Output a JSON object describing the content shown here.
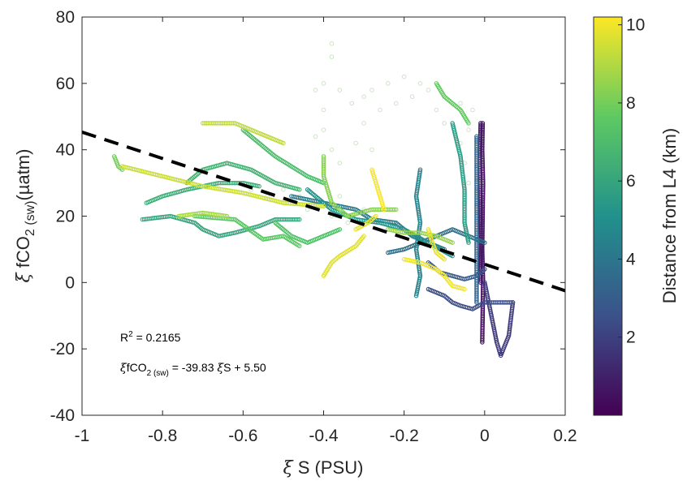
{
  "chart_data": {
    "type": "scatter",
    "title": "",
    "xlabel": {
      "symbol": "ξ",
      "text": " S (PSU)"
    },
    "ylabel": {
      "symbol": "ξ",
      "pre": " fCO",
      "sub1": "2",
      "sub2": " (sw)",
      "post": "(µatm)"
    },
    "colorbar_label": "Distance from L4 (km)",
    "xlim": [
      -1,
      0.2
    ],
    "ylim": [
      -40,
      80
    ],
    "xticks": [
      "-1",
      "-0.8",
      "-0.6",
      "-0.4",
      "-0.2",
      "0",
      "0.2"
    ],
    "yticks": [
      "80",
      "60",
      "40",
      "20",
      "0",
      "-20",
      "-40"
    ],
    "colorbar_range": [
      0,
      10.2
    ],
    "colorbar_ticks": [
      "10",
      "8",
      "6",
      "4",
      "2"
    ],
    "colormap": [
      "#440154",
      "#3b528b",
      "#21918c",
      "#5ec962",
      "#fde725"
    ],
    "regression": {
      "slope": -39.83,
      "intercept": 5.5,
      "style": "dashed",
      "color": "#000000"
    },
    "annotations": {
      "r2_text": "R",
      "r2_sup": "2",
      "r2_value": " = 0.2165",
      "eq_symbol": "ξ",
      "eq_pre": "fCO",
      "eq_sub1": "2",
      "eq_sub2": " (sw)",
      "eq_post": " = -39.83 ",
      "eq_symbol2": "ξ",
      "eq_tail": "S + 5.50"
    },
    "tracks": [
      {
        "d": 0.4,
        "points": [
          [
            -0.005,
            48
          ],
          [
            -0.006,
            40
          ],
          [
            -0.004,
            30
          ],
          [
            -0.005,
            20
          ],
          [
            -0.006,
            10
          ],
          [
            -0.004,
            0
          ],
          [
            -0.005,
            -10
          ],
          [
            -0.006,
            -18
          ]
        ]
      },
      {
        "d": 0.8,
        "points": [
          [
            -0.01,
            48
          ],
          [
            -0.012,
            36
          ],
          [
            -0.01,
            24
          ],
          [
            -0.009,
            12
          ],
          [
            -0.01,
            0
          ]
        ]
      },
      {
        "d": 1.8,
        "points": [
          [
            0.0,
            0
          ],
          [
            0.01,
            -6
          ],
          [
            0.02,
            -12
          ],
          [
            0.03,
            -18
          ],
          [
            0.04,
            -22
          ],
          [
            0.06,
            -16
          ],
          [
            0.07,
            -6
          ]
        ]
      },
      {
        "d": 2.4,
        "points": [
          [
            -0.14,
            -2
          ],
          [
            -0.1,
            -4
          ],
          [
            -0.08,
            -6
          ],
          [
            -0.06,
            -7
          ],
          [
            -0.03,
            -8
          ],
          [
            0.0,
            -6
          ],
          [
            0.04,
            -6
          ],
          [
            0.07,
            -6
          ]
        ]
      },
      {
        "d": 2.8,
        "points": [
          [
            -0.14,
            6
          ],
          [
            -0.11,
            3
          ],
          [
            -0.08,
            2
          ],
          [
            -0.05,
            1
          ],
          [
            -0.02,
            2
          ],
          [
            0.0,
            4
          ]
        ]
      },
      {
        "d": 3.2,
        "points": [
          [
            -0.02,
            44
          ],
          [
            -0.02,
            32
          ],
          [
            -0.02,
            20
          ],
          [
            -0.02,
            10
          ],
          [
            -0.02,
            2
          ],
          [
            -0.02,
            -6
          ]
        ]
      },
      {
        "d": 3.8,
        "points": [
          [
            -0.24,
            9
          ],
          [
            -0.2,
            10
          ],
          [
            -0.16,
            12
          ],
          [
            -0.12,
            14
          ],
          [
            -0.08,
            16
          ],
          [
            -0.04,
            14
          ],
          [
            0.0,
            12
          ]
        ]
      },
      {
        "d": 4.2,
        "points": [
          [
            -0.48,
            26
          ],
          [
            -0.4,
            24
          ],
          [
            -0.32,
            22
          ],
          [
            -0.28,
            19
          ],
          [
            -0.22,
            18
          ],
          [
            -0.18,
            14
          ],
          [
            -0.14,
            12
          ],
          [
            -0.1,
            10
          ]
        ]
      },
      {
        "d": 4.5,
        "points": [
          [
            -0.16,
            34
          ],
          [
            -0.17,
            26
          ],
          [
            -0.16,
            18
          ],
          [
            -0.17,
            10
          ],
          [
            -0.16,
            2
          ],
          [
            -0.17,
            -4
          ]
        ]
      },
      {
        "d": 5.2,
        "points": [
          [
            -0.44,
            28
          ],
          [
            -0.38,
            22
          ],
          [
            -0.32,
            19
          ],
          [
            -0.26,
            18
          ],
          [
            -0.2,
            16
          ],
          [
            -0.14,
            12
          ],
          [
            -0.08,
            8
          ]
        ]
      },
      {
        "d": 5.6,
        "points": [
          [
            -0.08,
            48
          ],
          [
            -0.06,
            38
          ],
          [
            -0.05,
            28
          ],
          [
            -0.05,
            18
          ],
          [
            -0.04,
            12
          ]
        ]
      },
      {
        "d": 6.0,
        "points": [
          [
            -0.85,
            19
          ],
          [
            -0.78,
            20
          ],
          [
            -0.72,
            18
          ],
          [
            -0.7,
            16
          ],
          [
            -0.66,
            14
          ],
          [
            -0.62,
            15
          ],
          [
            -0.56,
            17
          ],
          [
            -0.52,
            19
          ],
          [
            -0.46,
            19
          ]
        ]
      },
      {
        "d": 6.3,
        "points": [
          [
            -0.84,
            24
          ],
          [
            -0.8,
            26
          ],
          [
            -0.74,
            28
          ],
          [
            -0.66,
            30
          ],
          [
            -0.6,
            30
          ],
          [
            -0.56,
            29
          ]
        ]
      },
      {
        "d": 6.6,
        "points": [
          [
            -0.74,
            30
          ],
          [
            -0.7,
            34
          ],
          [
            -0.64,
            36
          ],
          [
            -0.58,
            34
          ],
          [
            -0.52,
            30
          ],
          [
            -0.46,
            28
          ]
        ]
      },
      {
        "d": 7.0,
        "points": [
          [
            -0.6,
            46
          ],
          [
            -0.56,
            42
          ],
          [
            -0.52,
            38
          ],
          [
            -0.48,
            35
          ],
          [
            -0.44,
            32
          ],
          [
            -0.4,
            30
          ]
        ]
      },
      {
        "d": 7.2,
        "points": [
          [
            -0.52,
            18
          ],
          [
            -0.48,
            14
          ],
          [
            -0.44,
            12
          ],
          [
            -0.4,
            14
          ],
          [
            -0.36,
            16
          ]
        ]
      },
      {
        "d": 7.5,
        "points": [
          [
            -0.72,
            20
          ],
          [
            -0.62,
            19
          ],
          [
            -0.55,
            13
          ],
          [
            -0.5,
            14
          ],
          [
            -0.46,
            11
          ]
        ]
      },
      {
        "d": 7.7,
        "points": [
          [
            -0.12,
            60
          ],
          [
            -0.1,
            56
          ],
          [
            -0.08,
            54
          ],
          [
            -0.06,
            52
          ],
          [
            -0.04,
            48
          ]
        ]
      },
      {
        "d": 8.0,
        "points": [
          [
            -0.92,
            38
          ],
          [
            -0.91,
            35
          ],
          [
            -0.9,
            34
          ]
        ]
      },
      {
        "d": 8.3,
        "points": [
          [
            -0.4,
            38
          ],
          [
            -0.4,
            32
          ],
          [
            -0.38,
            24
          ],
          [
            -0.34,
            20
          ],
          [
            -0.28,
            22
          ],
          [
            -0.22,
            22
          ]
        ]
      },
      {
        "d": 8.6,
        "points": [
          [
            -0.24,
            16
          ],
          [
            -0.2,
            15
          ],
          [
            -0.16,
            15
          ],
          [
            -0.12,
            14
          ],
          [
            -0.08,
            12
          ]
        ]
      },
      {
        "d": 8.8,
        "points": [
          [
            -0.76,
            20
          ],
          [
            -0.7,
            21
          ],
          [
            -0.64,
            20
          ]
        ]
      },
      {
        "d": 9.2,
        "points": [
          [
            -0.7,
            48
          ],
          [
            -0.62,
            48
          ],
          [
            -0.58,
            46
          ],
          [
            -0.54,
            44
          ],
          [
            -0.5,
            42
          ]
        ]
      },
      {
        "d": 9.4,
        "points": [
          [
            -0.9,
            35
          ],
          [
            -0.8,
            32
          ],
          [
            -0.7,
            29
          ],
          [
            -0.6,
            27
          ],
          [
            -0.5,
            24
          ],
          [
            -0.4,
            23
          ]
        ]
      },
      {
        "d": 9.7,
        "points": [
          [
            -0.4,
            2
          ],
          [
            -0.38,
            6
          ],
          [
            -0.36,
            8
          ],
          [
            -0.32,
            11
          ],
          [
            -0.3,
            14
          ]
        ]
      },
      {
        "d": 9.8,
        "points": [
          [
            -0.32,
            16
          ],
          [
            -0.29,
            18
          ],
          [
            -0.27,
            20
          ]
        ]
      },
      {
        "d": 10.0,
        "points": [
          [
            -0.2,
            7
          ],
          [
            -0.16,
            6
          ],
          [
            -0.12,
            4
          ],
          [
            -0.1,
            2
          ],
          [
            -0.08,
            -1
          ],
          [
            -0.05,
            -2
          ]
        ]
      },
      {
        "d": 9.9,
        "points": [
          [
            -0.14,
            16
          ],
          [
            -0.13,
            12
          ],
          [
            -0.12,
            9
          ],
          [
            -0.1,
            7
          ]
        ]
      },
      {
        "d": 10.1,
        "points": [
          [
            -0.28,
            34
          ],
          [
            -0.27,
            30
          ],
          [
            -0.26,
            26
          ],
          [
            -0.25,
            22
          ]
        ]
      }
    ],
    "faint_cloud": [
      [
        -0.38,
        72
      ],
      [
        -0.38,
        68
      ],
      [
        -0.4,
        60
      ],
      [
        -0.42,
        58
      ],
      [
        -0.36,
        58
      ],
      [
        -0.33,
        54
      ],
      [
        -0.3,
        56
      ],
      [
        -0.28,
        58
      ],
      [
        -0.24,
        60
      ],
      [
        -0.2,
        62
      ],
      [
        -0.16,
        60
      ],
      [
        -0.14,
        58
      ],
      [
        -0.1,
        56
      ],
      [
        -0.06,
        54
      ],
      [
        -0.03,
        52
      ],
      [
        -0.04,
        46
      ],
      [
        -0.06,
        42
      ],
      [
        -0.05,
        36
      ],
      [
        -0.04,
        30
      ],
      [
        -0.05,
        24
      ],
      [
        -0.4,
        52
      ],
      [
        -0.4,
        46
      ],
      [
        -0.42,
        44
      ],
      [
        -0.38,
        40
      ],
      [
        -0.36,
        36
      ],
      [
        -0.32,
        42
      ],
      [
        -0.3,
        48
      ],
      [
        -0.28,
        40
      ],
      [
        -0.26,
        52
      ],
      [
        -0.22,
        54
      ],
      [
        -0.18,
        56
      ],
      [
        -0.12,
        52
      ],
      [
        -0.1,
        48
      ],
      [
        -0.36,
        26
      ],
      [
        -0.38,
        20
      ],
      [
        -0.34,
        18
      ],
      [
        -0.3,
        22
      ],
      [
        -0.5,
        28
      ],
      [
        -0.54,
        26
      ],
      [
        -0.58,
        28
      ],
      [
        -0.62,
        30
      ],
      [
        -0.44,
        22
      ],
      [
        -0.46,
        26
      ]
    ]
  }
}
